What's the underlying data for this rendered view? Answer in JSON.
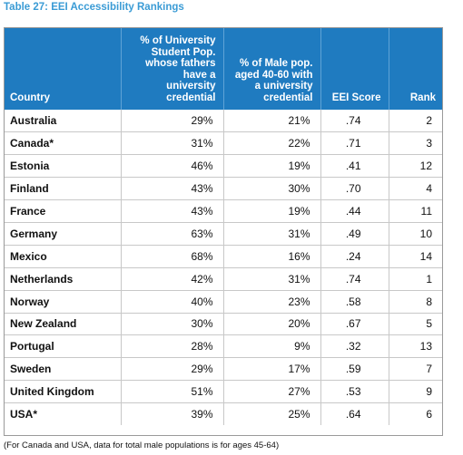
{
  "caption": "Table 27: EEI Accessibility Rankings",
  "headers": [
    [
      "Country"
    ],
    [
      "% of University",
      "Student Pop.",
      "whose fathers",
      "have a",
      "university",
      "credential"
    ],
    [
      "% of Male pop.",
      "aged 40-60 with",
      "a university",
      "credential"
    ],
    [
      "EEI Score"
    ],
    [
      "Rank"
    ]
  ],
  "rows": [
    [
      "Australia",
      "29%",
      "21%",
      ".74",
      "2"
    ],
    [
      "Canada*",
      "31%",
      "22%",
      ".71",
      "3"
    ],
    [
      "Estonia",
      "46%",
      "19%",
      ".41",
      "12"
    ],
    [
      "Finland",
      "43%",
      "30%",
      ".70",
      "4"
    ],
    [
      "France",
      "43%",
      "19%",
      ".44",
      "11"
    ],
    [
      "Germany",
      "63%",
      "31%",
      ".49",
      "10"
    ],
    [
      "Mexico",
      "68%",
      "16%",
      ".24",
      "14"
    ],
    [
      "Netherlands",
      "42%",
      "31%",
      ".74",
      "1"
    ],
    [
      "Norway",
      "40%",
      "23%",
      ".58",
      "8"
    ],
    [
      "New Zealand",
      "30%",
      "20%",
      ".67",
      "5"
    ],
    [
      "Portugal",
      "28%",
      "9%",
      ".32",
      "13"
    ],
    [
      "Sweden",
      "29%",
      "17%",
      ".59",
      "7"
    ],
    [
      "United Kingdom",
      "51%",
      "27%",
      ".53",
      "9"
    ],
    [
      "USA*",
      "39%",
      "25%",
      ".64",
      "6"
    ]
  ],
  "footnote": "(For Canada and USA, data for total male populations is for ages 45-64)"
}
